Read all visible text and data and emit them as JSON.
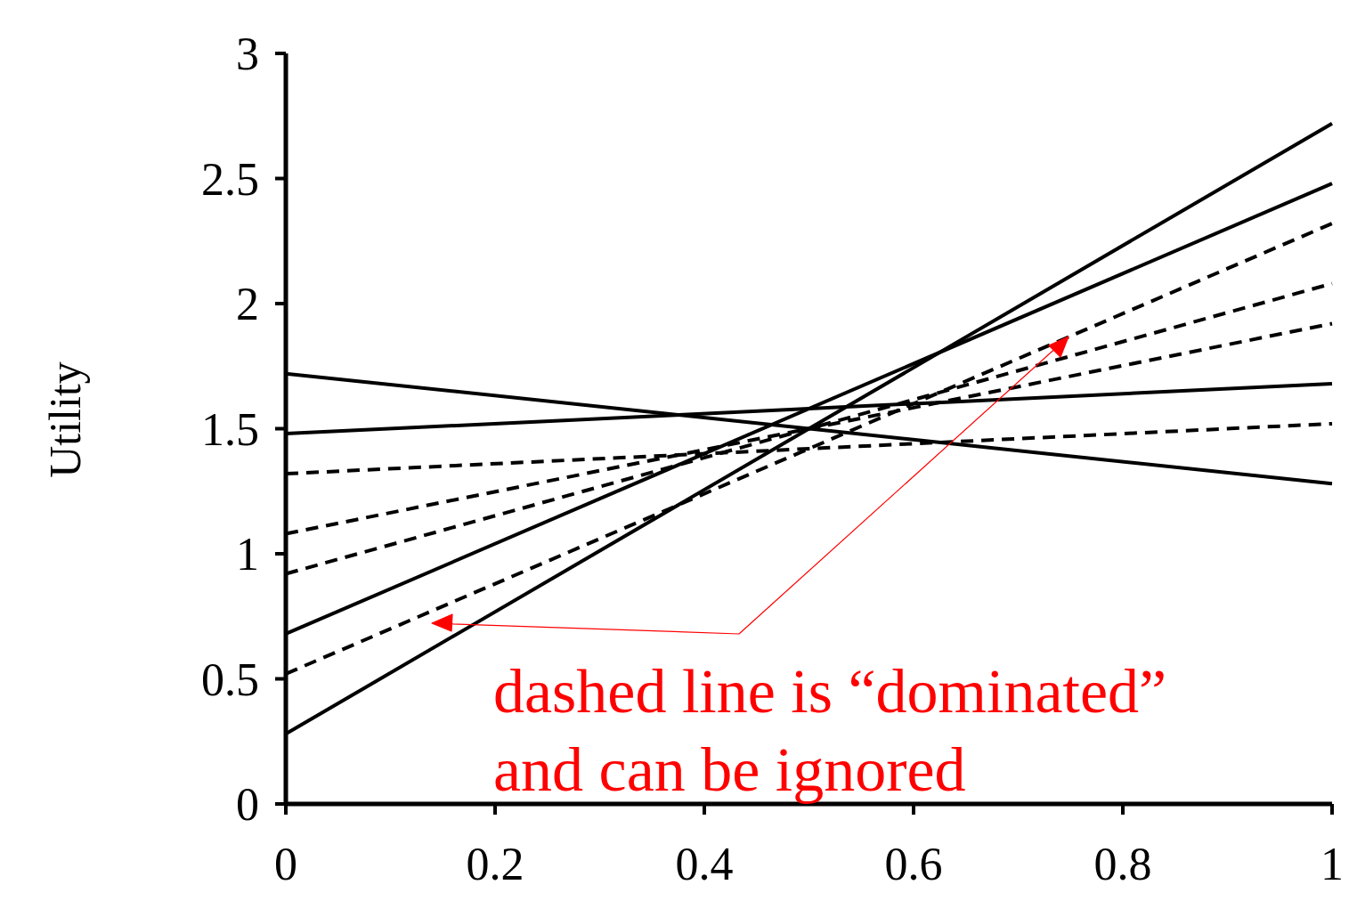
{
  "chart_data": {
    "type": "line",
    "ylabel": "Utility",
    "x": [
      0,
      1
    ],
    "xlim": [
      0,
      1
    ],
    "ylim": [
      0,
      3
    ],
    "xticks": [
      0,
      0.2,
      0.4,
      0.6,
      0.8,
      1
    ],
    "yticks": [
      0,
      0.5,
      1,
      1.5,
      2,
      2.5,
      3
    ],
    "grid": false,
    "marker": "none",
    "series": [
      {
        "color": "#000000",
        "line_style": "solid",
        "values": [
          1.72,
          1.28
        ]
      },
      {
        "color": "#000000",
        "line_style": "solid",
        "values": [
          1.48,
          1.68
        ]
      },
      {
        "color": "#000000",
        "line_style": "solid",
        "values": [
          0.68,
          2.48
        ]
      },
      {
        "color": "#000000",
        "line_style": "solid",
        "values": [
          0.28,
          2.72
        ]
      },
      {
        "color": "#000000",
        "line_style": "dashed",
        "values": [
          1.32,
          1.52
        ]
      },
      {
        "color": "#000000",
        "line_style": "dashed",
        "values": [
          1.08,
          1.92
        ]
      },
      {
        "color": "#000000",
        "line_style": "dashed",
        "values": [
          0.92,
          2.08
        ]
      },
      {
        "color": "#000000",
        "line_style": "dashed",
        "values": [
          0.52,
          2.32
        ]
      }
    ],
    "annotations": [
      "dashed line is “dominated” and can be ignored"
    ]
  }
}
